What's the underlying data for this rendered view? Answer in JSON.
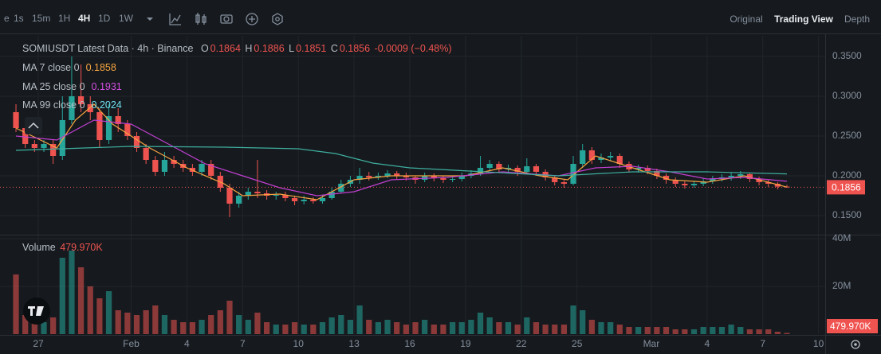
{
  "toolbar": {
    "intervals": [
      "e",
      "1s",
      "15m",
      "1H",
      "4H",
      "1D",
      "1W"
    ],
    "views": [
      "Original",
      "Trading View",
      "Depth"
    ]
  },
  "chart_data": {
    "type": "candlestick",
    "title": "SOMIUSDT Latest Data · 4h · Binance",
    "ohlc_labels": [
      "O",
      "H",
      "L",
      "C"
    ],
    "change_label": "-0.0009 (−0.48%)",
    "up_color": "#26a69a",
    "down_color": "#ef5350",
    "grid": true,
    "xlim": [
      -2.06,
      42.36
    ],
    "xticks": [
      {
        "value": 0,
        "label": "27"
      },
      {
        "value": 5,
        "label": "Feb"
      },
      {
        "value": 8,
        "label": "4"
      },
      {
        "value": 11,
        "label": "7"
      },
      {
        "value": 14,
        "label": "10"
      },
      {
        "value": 17,
        "label": "13"
      },
      {
        "value": 20,
        "label": "16"
      },
      {
        "value": 23,
        "label": "19"
      },
      {
        "value": 26,
        "label": "22"
      },
      {
        "value": 29,
        "label": "25"
      },
      {
        "value": 33,
        "label": "Mar"
      },
      {
        "value": 36,
        "label": "4"
      },
      {
        "value": 39,
        "label": "7"
      },
      {
        "value": 42,
        "label": "10"
      }
    ],
    "ylim": [
      0.126,
      0.376
    ],
    "yticks": [
      {
        "value": 0.15,
        "label": "0.1500"
      },
      {
        "value": 0.2,
        "label": "0.2000"
      },
      {
        "value": 0.25,
        "label": "0.2500"
      },
      {
        "value": 0.3,
        "label": "0.3000"
      },
      {
        "value": 0.35,
        "label": "0.3500"
      }
    ],
    "volume_name": "Volume",
    "last_volume_label": "479.970K",
    "volume_ylim": [
      0,
      40000000
    ],
    "volume_yticks": [
      {
        "value": 20000000,
        "label": "20M"
      },
      {
        "value": 40000000,
        "label": "40M"
      }
    ],
    "x": [
      -1.2,
      -0.7,
      -0.2,
      0.3,
      0.8,
      1.3,
      1.8,
      2.3,
      2.8,
      3.3,
      3.8,
      4.3,
      4.8,
      5.3,
      5.8,
      6.3,
      6.8,
      7.3,
      7.8,
      8.3,
      8.8,
      9.3,
      9.8,
      10.3,
      10.8,
      11.3,
      11.8,
      12.3,
      12.8,
      13.3,
      13.8,
      14.3,
      14.8,
      15.3,
      15.8,
      16.3,
      16.8,
      17.3,
      17.8,
      18.3,
      18.8,
      19.3,
      19.8,
      20.3,
      20.8,
      21.3,
      21.8,
      22.3,
      22.8,
      23.3,
      23.8,
      24.3,
      24.8,
      25.3,
      25.8,
      26.3,
      26.8,
      27.3,
      27.8,
      28.3,
      28.8,
      29.3,
      29.8,
      30.3,
      30.8,
      31.3,
      31.8,
      32.3,
      32.8,
      33.3,
      33.8,
      34.3,
      34.8,
      35.3,
      35.8,
      36.3,
      36.8,
      37.3,
      37.8,
      38.3,
      38.8,
      39.3,
      39.8,
      40.3
    ],
    "open": [
      0.28,
      0.26,
      0.24,
      0.235,
      0.24,
      0.225,
      0.27,
      0.3,
      0.29,
      0.28,
      0.245,
      0.275,
      0.265,
      0.25,
      0.235,
      0.22,
      0.205,
      0.22,
      0.215,
      0.21,
      0.205,
      0.215,
      0.2,
      0.185,
      0.165,
      0.175,
      0.18,
      0.178,
      0.175,
      0.176,
      0.172,
      0.168,
      0.17,
      0.168,
      0.172,
      0.18,
      0.19,
      0.195,
      0.2,
      0.198,
      0.2,
      0.203,
      0.2,
      0.198,
      0.195,
      0.2,
      0.197,
      0.195,
      0.196,
      0.2,
      0.203,
      0.21,
      0.215,
      0.208,
      0.21,
      0.205,
      0.212,
      0.205,
      0.198,
      0.192,
      0.19,
      0.215,
      0.232,
      0.22,
      0.223,
      0.225,
      0.215,
      0.208,
      0.21,
      0.206,
      0.2,
      0.195,
      0.19,
      0.188,
      0.19,
      0.193,
      0.196,
      0.198,
      0.2,
      0.202,
      0.196,
      0.192,
      0.19,
      0.1864
    ],
    "high": [
      0.29,
      0.265,
      0.245,
      0.245,
      0.245,
      0.3,
      0.35,
      0.34,
      0.3,
      0.285,
      0.29,
      0.285,
      0.27,
      0.255,
      0.24,
      0.225,
      0.23,
      0.225,
      0.22,
      0.215,
      0.22,
      0.22,
      0.205,
      0.19,
      0.18,
      0.185,
      0.22,
      0.182,
      0.18,
      0.18,
      0.175,
      0.175,
      0.173,
      0.176,
      0.185,
      0.195,
      0.2,
      0.21,
      0.205,
      0.204,
      0.207,
      0.206,
      0.204,
      0.2,
      0.204,
      0.203,
      0.2,
      0.2,
      0.204,
      0.207,
      0.225,
      0.22,
      0.218,
      0.214,
      0.213,
      0.222,
      0.215,
      0.208,
      0.2,
      0.195,
      0.225,
      0.24,
      0.236,
      0.228,
      0.23,
      0.228,
      0.218,
      0.214,
      0.213,
      0.209,
      0.203,
      0.198,
      0.193,
      0.194,
      0.197,
      0.2,
      0.202,
      0.204,
      0.206,
      0.204,
      0.199,
      0.195,
      0.192,
      0.1886
    ],
    "low": [
      0.255,
      0.235,
      0.23,
      0.23,
      0.215,
      0.22,
      0.265,
      0.28,
      0.27,
      0.235,
      0.24,
      0.255,
      0.245,
      0.23,
      0.215,
      0.2,
      0.2,
      0.21,
      0.205,
      0.2,
      0.2,
      0.195,
      0.18,
      0.148,
      0.16,
      0.17,
      0.172,
      0.17,
      0.17,
      0.168,
      0.163,
      0.164,
      0.165,
      0.165,
      0.17,
      0.178,
      0.186,
      0.19,
      0.194,
      0.195,
      0.197,
      0.196,
      0.194,
      0.19,
      0.192,
      0.193,
      0.191,
      0.192,
      0.193,
      0.197,
      0.2,
      0.206,
      0.204,
      0.204,
      0.2,
      0.202,
      0.2,
      0.194,
      0.188,
      0.185,
      0.188,
      0.21,
      0.215,
      0.216,
      0.218,
      0.21,
      0.204,
      0.204,
      0.202,
      0.196,
      0.19,
      0.186,
      0.184,
      0.185,
      0.187,
      0.19,
      0.193,
      0.194,
      0.196,
      0.192,
      0.188,
      0.186,
      0.183,
      0.1851
    ],
    "close": [
      0.26,
      0.24,
      0.235,
      0.24,
      0.225,
      0.27,
      0.3,
      0.29,
      0.28,
      0.245,
      0.275,
      0.265,
      0.25,
      0.235,
      0.22,
      0.205,
      0.22,
      0.215,
      0.21,
      0.205,
      0.215,
      0.2,
      0.185,
      0.165,
      0.175,
      0.18,
      0.178,
      0.175,
      0.176,
      0.172,
      0.168,
      0.17,
      0.168,
      0.172,
      0.18,
      0.19,
      0.195,
      0.2,
      0.198,
      0.2,
      0.203,
      0.2,
      0.198,
      0.195,
      0.2,
      0.197,
      0.195,
      0.196,
      0.2,
      0.203,
      0.21,
      0.215,
      0.208,
      0.21,
      0.205,
      0.212,
      0.205,
      0.198,
      0.192,
      0.19,
      0.215,
      0.232,
      0.22,
      0.223,
      0.225,
      0.215,
      0.208,
      0.21,
      0.206,
      0.2,
      0.195,
      0.19,
      0.188,
      0.19,
      0.193,
      0.196,
      0.198,
      0.2,
      0.202,
      0.196,
      0.192,
      0.19,
      0.1864,
      0.1856
    ],
    "volume": [
      25000000,
      8000000,
      6000000,
      5000000,
      7000000,
      32000000,
      35000000,
      28000000,
      20000000,
      15000000,
      18000000,
      10000000,
      9000000,
      8000000,
      10000000,
      12000000,
      8000000,
      6000000,
      5000000,
      5000000,
      6000000,
      8000000,
      10000000,
      14000000,
      8000000,
      6000000,
      9000000,
      5000000,
      4000000,
      4000000,
      5000000,
      4000000,
      4000000,
      5000000,
      7000000,
      8000000,
      6000000,
      12000000,
      6000000,
      5000000,
      6000000,
      5000000,
      4000000,
      5000000,
      6000000,
      4000000,
      4000000,
      5000000,
      5000000,
      6000000,
      9000000,
      7000000,
      5000000,
      5000000,
      4000000,
      7000000,
      5000000,
      4000000,
      4000000,
      4000000,
      12000000,
      10000000,
      6000000,
      5000000,
      5000000,
      4000000,
      3000000,
      3000000,
      3000000,
      3000000,
      3000000,
      2000000,
      2000000,
      2000000,
      3000000,
      3000000,
      3000000,
      4000000,
      3000000,
      2000000,
      2000000,
      2000000,
      1000000,
      479970
    ],
    "moving_averages": [
      {
        "name": "MA 7 close 0",
        "color": "#f7a440",
        "value_color": "#f7a440",
        "x": [
          -1.2,
          1,
          2,
          3,
          4,
          6,
          8,
          10,
          11,
          13,
          15,
          17,
          19,
          23,
          25,
          27,
          28.5,
          30,
          32,
          34,
          36,
          38,
          40.3
        ],
        "values": [
          0.26,
          0.235,
          0.27,
          0.29,
          0.265,
          0.235,
          0.21,
          0.19,
          0.175,
          0.177,
          0.17,
          0.195,
          0.2,
          0.2,
          0.21,
          0.2,
          0.195,
          0.225,
          0.21,
          0.195,
          0.192,
          0.2,
          0.1858
        ]
      },
      {
        "name": "MA 25 close 0",
        "color": "#c03fd0",
        "value_color": "#d24ee0",
        "x": [
          -1.2,
          1,
          3,
          5,
          7,
          9,
          11,
          13,
          15,
          17,
          19,
          22,
          25,
          28,
          30,
          32,
          34,
          36,
          38,
          40.3
        ],
        "values": [
          0.25,
          0.245,
          0.27,
          0.265,
          0.24,
          0.215,
          0.2,
          0.185,
          0.175,
          0.18,
          0.195,
          0.198,
          0.205,
          0.2,
          0.21,
          0.212,
          0.205,
          0.196,
          0.198,
          0.1931
        ]
      },
      {
        "name": "MA 99 close 0",
        "color": "#3fae9f",
        "value_color": "#6fe0f0",
        "x": [
          -1.2,
          5,
          10,
          14,
          16,
          18,
          20,
          24,
          28,
          32,
          36,
          40.3
        ],
        "values": [
          0.232,
          0.237,
          0.236,
          0.234,
          0.228,
          0.216,
          0.21,
          0.205,
          0.2,
          0.205,
          0.205,
          0.2024
        ]
      }
    ]
  }
}
